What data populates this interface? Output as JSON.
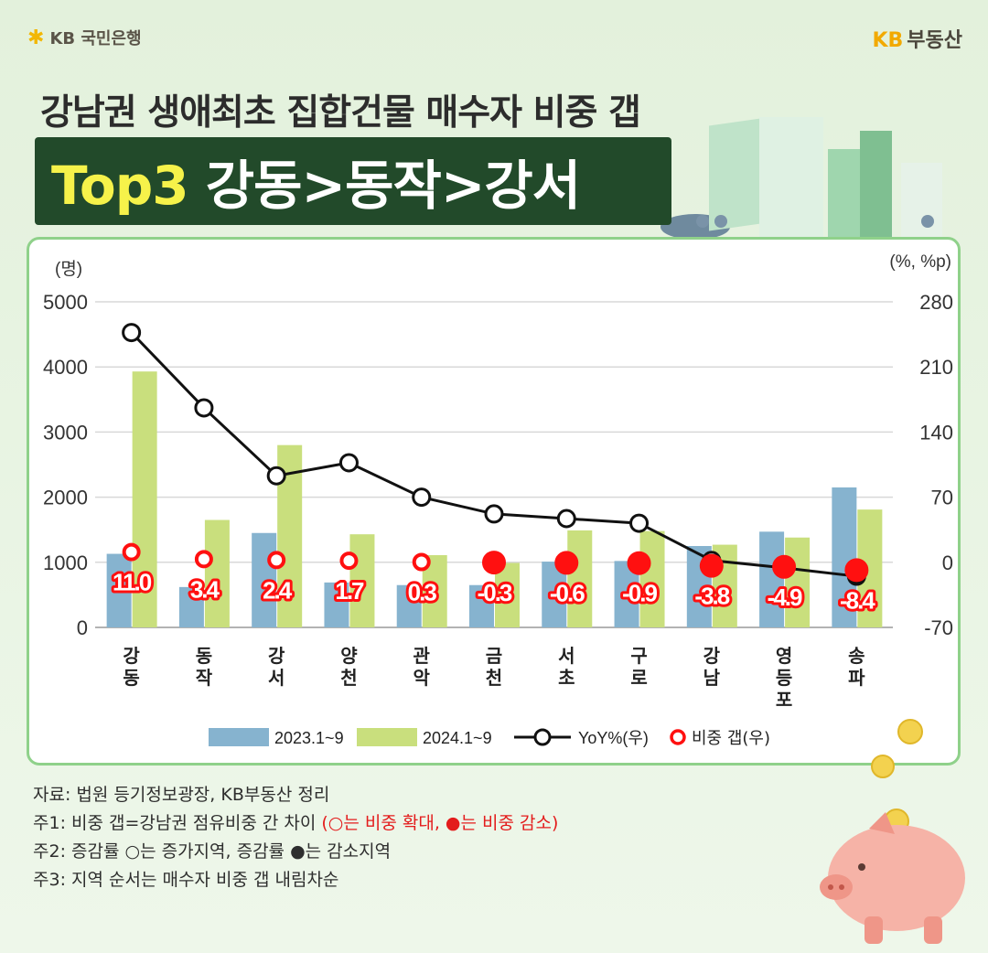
{
  "header": {
    "brand_left": "KB 국민은행",
    "brand_right_kb": "KB",
    "brand_right_text": "부동산",
    "title_line1": "강남권 생애최초 집합건물 매수자 비중 갭",
    "title_highlight": "Top3",
    "title_line2_rest": " 강동>동작>강서"
  },
  "chart_data": {
    "type": "bar",
    "y_left_unit": "(명)",
    "y_right_unit": "(%, %p)",
    "ylim_left": [
      0,
      5000
    ],
    "ylim_right": [
      -70,
      280
    ],
    "y_left_ticks": [
      "0",
      "1000",
      "2000",
      "3000",
      "4000",
      "5000"
    ],
    "y_right_ticks": [
      "-70",
      "0",
      "70",
      "140",
      "210",
      "280"
    ],
    "categories": [
      "강\n동",
      "동\n작",
      "강\n서",
      "양\n천",
      "관\n악",
      "금\n천",
      "서\n초",
      "구\n로",
      "강\n남",
      "영\n등\n포",
      "송\n파"
    ],
    "series": [
      {
        "name": "2023.1~9",
        "type": "bar",
        "axis": "left",
        "color": "#86b3cf",
        "values": [
          1130,
          620,
          1450,
          690,
          650,
          650,
          1010,
          1020,
          1250,
          1470,
          2150
        ]
      },
      {
        "name": "2024.1~9",
        "type": "bar",
        "axis": "left",
        "color": "#c9df7d",
        "values": [
          3930,
          1650,
          2800,
          1430,
          1110,
          990,
          1490,
          1480,
          1270,
          1380,
          1810
        ]
      },
      {
        "name": "YoY%(우)",
        "type": "line",
        "axis": "right",
        "color": "#111111",
        "values": [
          247,
          166,
          93,
          107,
          70,
          52,
          47,
          42,
          2,
          -6,
          -15
        ]
      },
      {
        "name": "비중 갭(우)",
        "type": "marker",
        "axis": "right",
        "color": "#ff1010",
        "values": [
          11.0,
          3.4,
          2.4,
          1.7,
          0.3,
          -0.3,
          -0.6,
          -0.9,
          -3.8,
          -4.9,
          -8.4
        ],
        "labels": [
          "11.0",
          "3.4",
          "2.4",
          "1.7",
          "0.3",
          "-0.3",
          "-0.6",
          "-0.9",
          "-3.8",
          "-4.9",
          "-8.4"
        ]
      }
    ],
    "legend_position": "bottom",
    "grid": true
  },
  "notes": {
    "line1": "자료: 법원 등기정보광장, KB부동산 정리",
    "line2_prefix": "주1: 비중 갭=강남권 점유비중 간 차이 ",
    "line2_red": "(○는 비중 확대, ●는 비중 감소)",
    "line3": "주2: 증감률 ○는 증가지역, 증감률 ●는 감소지역",
    "line4": "주3: 지역 순서는 매수자 비중 갭 내림차순"
  }
}
